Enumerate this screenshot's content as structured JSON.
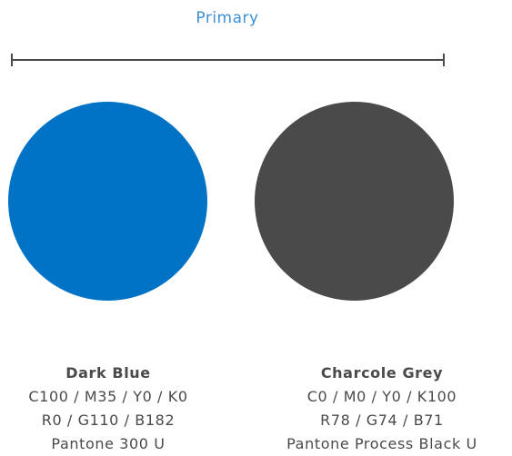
{
  "heading": "Primary",
  "colors": {
    "heading": "#3d8fd6",
    "dark_blue": "#0073c6",
    "charcoal_grey": "#4a4a4a",
    "text": "#4a4a4a"
  },
  "swatches": [
    {
      "name": "Dark Blue",
      "cmyk": "C100 / M35 / Y0 / K0",
      "rgb": "R0 / G110 / B182",
      "pantone": "Pantone 300 U"
    },
    {
      "name": "Charcole Grey",
      "cmyk": "C0 / M0 / Y0 / K100",
      "rgb": "R78 / G74 / B71",
      "pantone": "Pantone Process Black U"
    }
  ]
}
